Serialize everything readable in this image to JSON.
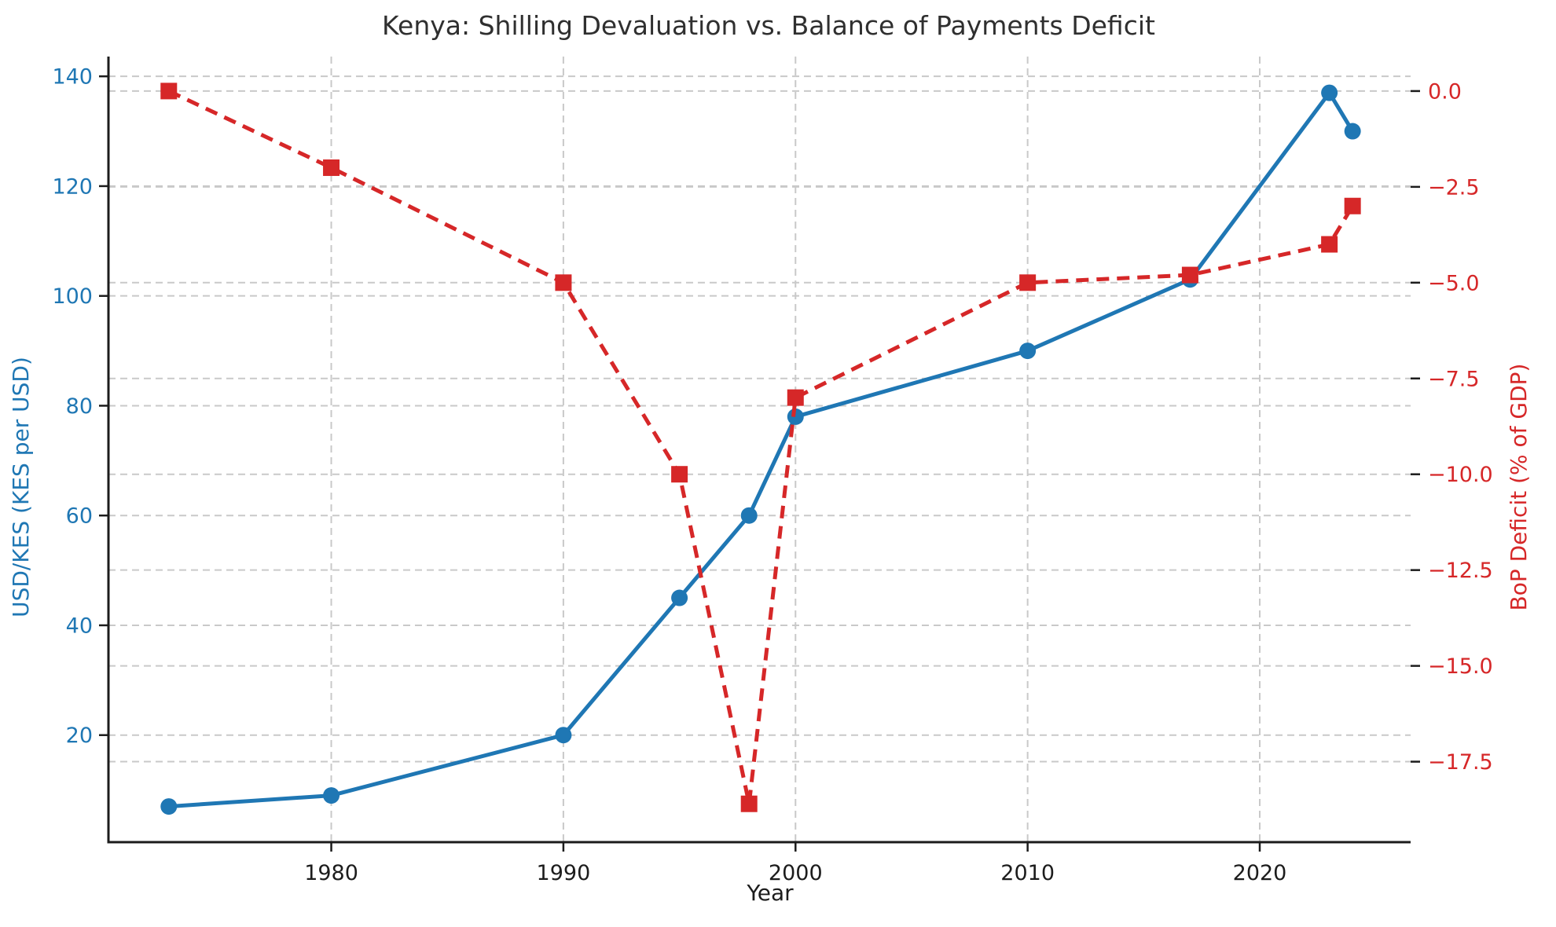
{
  "title": "Kenya: Shilling Devaluation vs. Balance of Payments Deficit",
  "colors": {
    "left_series": "#1f77b4",
    "right_series": "#d62728",
    "grid": "#c9c9c9",
    "spine": "#1c1c1c",
    "title_text": "#2f2f2f",
    "x_tick_text": "#1c1c1c"
  },
  "chart_data": {
    "type": "line",
    "title": "Kenya: Shilling Devaluation vs. Balance of Payments Deficit",
    "xlabel": "Year",
    "ylabel_left": "USD/KES (KES per USD)",
    "ylabel_right": "BoP Deficit (% of GDP)",
    "x": [
      1973,
      1980,
      1990,
      1995,
      1998,
      2000,
      2010,
      2017,
      2023,
      2024
    ],
    "series": [
      {
        "name": "USD/KES (KES per USD)",
        "axis": "left",
        "color": "#1f77b4",
        "marker": "circle",
        "line_style": "solid",
        "values": [
          7,
          9,
          20,
          45,
          60,
          78,
          90,
          103,
          137,
          130
        ]
      },
      {
        "name": "BoP Deficit (% of GDP)",
        "axis": "right",
        "color": "#d62728",
        "marker": "square",
        "line_style": "dashed",
        "values": [
          0.0,
          -2.0,
          -5.0,
          -10.0,
          -18.6,
          -8.0,
          -5.0,
          -4.8,
          -4.0,
          -3.0
        ]
      }
    ],
    "x_ticks": [
      1980,
      1990,
      2000,
      2010,
      2020
    ],
    "left_ticks": [
      20,
      40,
      60,
      80,
      100,
      120,
      140
    ],
    "right_ticks": [
      0.0,
      -2.5,
      -5.0,
      -7.5,
      -10.0,
      -12.5,
      -15.0,
      -17.5
    ],
    "xlim": [
      1970.4,
      2026.5
    ],
    "ylim_left": [
      0.5,
      143.6
    ],
    "ylim_right": [
      -19.6,
      0.9
    ],
    "grid": true,
    "legend_position": "none"
  }
}
